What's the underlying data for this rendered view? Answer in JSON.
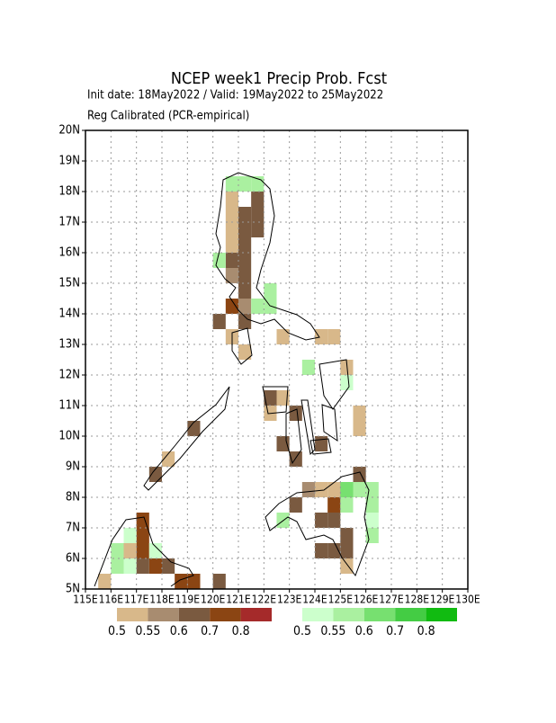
{
  "chart_data": {
    "type": "gridmap",
    "title": "NCEP week1 Precip Prob. Fcst",
    "subtitle": [
      "Init date: 18May2022 / Valid: 19May2022 to 25May2022",
      "Reg Calibrated (PCR-empirical)"
    ],
    "xlim": [
      115,
      130
    ],
    "ylim": [
      5,
      20
    ],
    "xticks": [
      {
        "value": 115,
        "label": "115E"
      },
      {
        "value": 116,
        "label": "116E"
      },
      {
        "value": 117,
        "label": "117E"
      },
      {
        "value": 118,
        "label": "118E"
      },
      {
        "value": 119,
        "label": "119E"
      },
      {
        "value": 120,
        "label": "120E"
      },
      {
        "value": 121,
        "label": "121E"
      },
      {
        "value": 122,
        "label": "122E"
      },
      {
        "value": 123,
        "label": "123E"
      },
      {
        "value": 124,
        "label": "124E"
      },
      {
        "value": 125,
        "label": "125E"
      },
      {
        "value": 126,
        "label": "126E"
      },
      {
        "value": 127,
        "label": "127E"
      },
      {
        "value": 128,
        "label": "128E"
      },
      {
        "value": 129,
        "label": "129E"
      },
      {
        "value": 130,
        "label": "130E"
      }
    ],
    "yticks": [
      {
        "value": 5,
        "label": "5N"
      },
      {
        "value": 6,
        "label": "6N"
      },
      {
        "value": 7,
        "label": "7N"
      },
      {
        "value": 8,
        "label": "8N"
      },
      {
        "value": 9,
        "label": "9N"
      },
      {
        "value": 10,
        "label": "10N"
      },
      {
        "value": 11,
        "label": "11N"
      },
      {
        "value": 12,
        "label": "12N"
      },
      {
        "value": 13,
        "label": "13N"
      },
      {
        "value": 14,
        "label": "14N"
      },
      {
        "value": 15,
        "label": "15N"
      },
      {
        "value": 16,
        "label": "16N"
      },
      {
        "value": 17,
        "label": "17N"
      },
      {
        "value": 18,
        "label": "18N"
      },
      {
        "value": 19,
        "label": "19N"
      },
      {
        "value": 20,
        "label": "20N"
      }
    ],
    "grid": true,
    "cell_size": 0.5,
    "series": [
      {
        "name": "below",
        "colors": [
          "#d8b88a",
          "#a88c70",
          "#7a5a40",
          "#8b4513",
          "#a52a2a"
        ],
        "levels": [
          0.5,
          0.55,
          0.6,
          0.7,
          0.8
        ],
        "lon": [
          120.5,
          120.5,
          120.5,
          121,
          121,
          121.5,
          121.5,
          121,
          121.5,
          120.5,
          121,
          120.5,
          120.5,
          121,
          121,
          121,
          120.5,
          121,
          120,
          120.5,
          121,
          122.5,
          124,
          124.5,
          122,
          122,
          122.5,
          123,
          122.5,
          123,
          124,
          125,
          125,
          125.5,
          125.5,
          123,
          123.5,
          124,
          124.5,
          124.5,
          125,
          125,
          124,
          124.5,
          125,
          124,
          124.5,
          125,
          125,
          125.5,
          119,
          118,
          117.5,
          117,
          117,
          117,
          116.5,
          116.5,
          117.5,
          118,
          118.5,
          119,
          117,
          120,
          115.5
        ],
        "lat": [
          17.5,
          17,
          16.5,
          17,
          16.5,
          17,
          16.5,
          16,
          17.5,
          16,
          15.5,
          15.5,
          15,
          15,
          14.5,
          14,
          14,
          13.5,
          13.5,
          13,
          12.5,
          13,
          13,
          13,
          11,
          10.5,
          11,
          10.5,
          9.5,
          9,
          9.5,
          12,
          11.5,
          10.5,
          10,
          7.5,
          8,
          8,
          8,
          7.5,
          8,
          7.5,
          7,
          7,
          6.5,
          6,
          6,
          6,
          5.5,
          8.5,
          10,
          9,
          8.5,
          7,
          6.5,
          6,
          6.5,
          6,
          5.5,
          5.5,
          5,
          5,
          5.5,
          5,
          5
        ],
        "prob": [
          0.5,
          0.5,
          0.5,
          0.6,
          0.6,
          0.6,
          0.6,
          0.6,
          0.6,
          0.5,
          0.6,
          0.6,
          0.55,
          0.6,
          0.6,
          0.55,
          0.7,
          0.6,
          0.6,
          0.5,
          0.5,
          0.5,
          0.5,
          0.5,
          0.6,
          0.5,
          0.5,
          0.6,
          0.6,
          0.6,
          0.6,
          0.5,
          0.5,
          0.5,
          0.5,
          0.6,
          0.55,
          0.5,
          0.5,
          0.7,
          0.6,
          0.6,
          0.6,
          0.6,
          0.6,
          0.6,
          0.6,
          0.6,
          0.5,
          0.6,
          0.6,
          0.5,
          0.6,
          0.7,
          0.7,
          0.7,
          0.5,
          0.5,
          0.7,
          0.6,
          0.7,
          0.7,
          0.6,
          0.6,
          0.5
        ]
      },
      {
        "name": "above",
        "colors": [
          "#ccffcc",
          "#aaf0a0",
          "#77e070",
          "#44cc44",
          "#11bb11"
        ],
        "levels": [
          0.5,
          0.55,
          0.6,
          0.7,
          0.8
        ],
        "lon": [
          120.5,
          121,
          121.5,
          120,
          121.5,
          122,
          122,
          125,
          123.5,
          122.5,
          125,
          125,
          125.5,
          126,
          126,
          126,
          126,
          116,
          116,
          116.5,
          117.5,
          116.5
        ],
        "lat": [
          18,
          18,
          18,
          15.5,
          14,
          14,
          14.5,
          11.5,
          12,
          7,
          8,
          7.5,
          8,
          8,
          7.5,
          6.5,
          7,
          6,
          5.5,
          5.5,
          6,
          6.5
        ],
        "prob": [
          0.55,
          0.55,
          0.55,
          0.55,
          0.55,
          0.55,
          0.55,
          0.5,
          0.55,
          0.55,
          0.6,
          0.55,
          0.55,
          0.55,
          0.55,
          0.55,
          0.5,
          0.55,
          0.55,
          0.5,
          0.5,
          0.5
        ]
      }
    ]
  }
}
